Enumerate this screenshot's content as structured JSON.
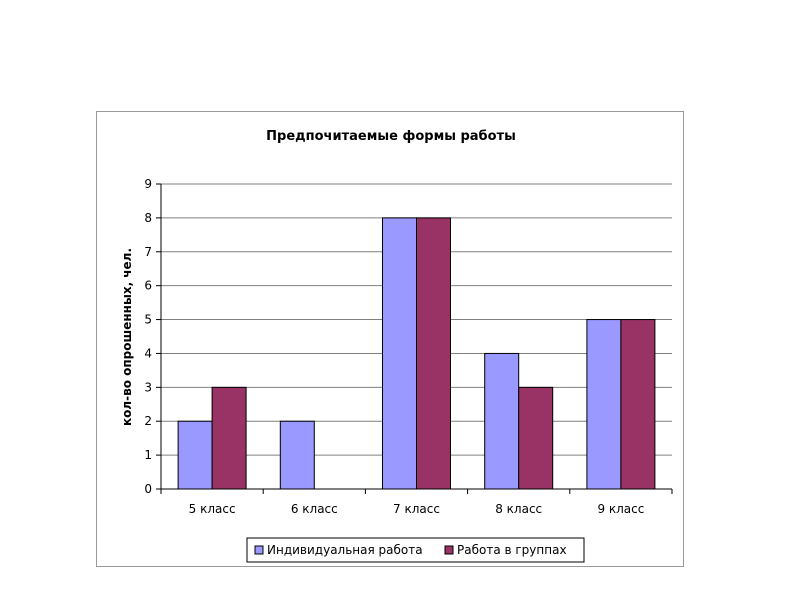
{
  "chart_data": {
    "type": "bar",
    "title": "Предпочитаемые формы работы",
    "xlabel": "",
    "ylabel": "кол-во опрошенных, чел.",
    "categories": [
      "5 класс",
      "6 класс",
      "7 класс",
      "8 класс",
      "9 класс"
    ],
    "series": [
      {
        "name": "Индивидуальная работа",
        "values": [
          2,
          2,
          8,
          4,
          5
        ],
        "color": "#9999ff"
      },
      {
        "name": "Работа в группах",
        "values": [
          3,
          0,
          8,
          3,
          5
        ],
        "color": "#993366"
      }
    ],
    "ylim": [
      0,
      9
    ],
    "yticks": [
      "0",
      "1",
      "2",
      "3",
      "4",
      "5",
      "6",
      "7",
      "8",
      "9"
    ],
    "grid": true,
    "legend_position": "bottom",
    "plot_background": "#ffffff",
    "gridline_color": "#808080"
  }
}
